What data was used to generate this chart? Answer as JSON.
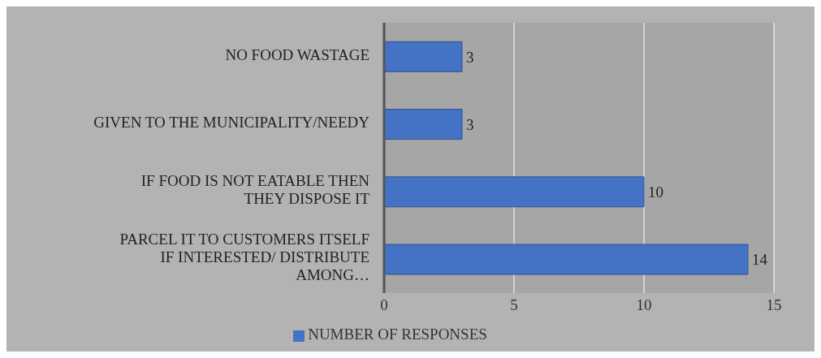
{
  "chart_data": {
    "type": "bar",
    "orientation": "horizontal",
    "categories": [
      "NO FOOD WASTAGE",
      "GIVEN TO THE MUNICIPALITY/NEEDY",
      "IF FOOD IS NOT EATABLE THEN THEY DISPOSE IT",
      "PARCEL IT TO CUSTOMERS ITSELF IF INTERESTED/ DISTRIBUTE AMONG…"
    ],
    "series": [
      {
        "name": "NUMBER OF RESPONSES",
        "color": "#4472c4",
        "values": [
          3,
          3,
          10,
          14
        ]
      }
    ],
    "xlim": [
      0,
      15
    ],
    "xticks": [
      0,
      5,
      10,
      15
    ],
    "grid": "x",
    "legend": "bottom",
    "data_labels": true
  }
}
